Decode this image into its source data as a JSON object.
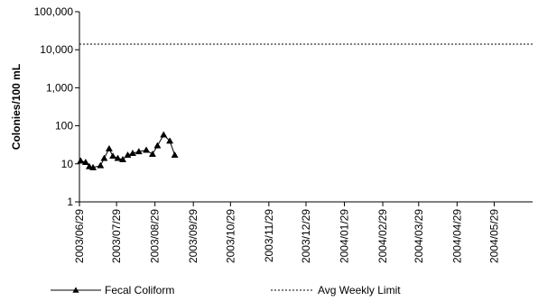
{
  "chart_data": {
    "type": "line",
    "title": "",
    "xlabel": "",
    "ylabel": "Colonies/100 mL",
    "yscale": "log",
    "ylim": [
      1,
      100000
    ],
    "xlim": [
      "2003-06-29",
      "2004-06-29"
    ],
    "grid": false,
    "legend_position": "bottom",
    "y_ticks": [
      1,
      10,
      100,
      1000,
      10000,
      100000
    ],
    "y_tick_labels": [
      "1",
      "10",
      "100",
      "1,000",
      "10,000",
      "100,000"
    ],
    "x_ticks": [
      "2003-06-29",
      "2003-07-29",
      "2003-08-29",
      "2003-09-29",
      "2003-10-29",
      "2003-11-29",
      "2003-12-29",
      "2004-01-29",
      "2004-02-29",
      "2004-03-29",
      "2004-04-29",
      "2004-05-29"
    ],
    "x_tick_labels": [
      "2003/06/29",
      "2003/07/29",
      "2003/08/29",
      "2003/09/29",
      "2003/10/29",
      "2003/11/29",
      "2003/12/29",
      "2004/01/29",
      "2004/02/29",
      "2004/03/29",
      "2004/04/29",
      "2004/05/29"
    ],
    "series": [
      {
        "name": "Fecal Coliform",
        "style": "line-triangle",
        "color": "#000000",
        "x": [
          "2003-06-30",
          "2003-07-04",
          "2003-07-07",
          "2003-07-10",
          "2003-07-16",
          "2003-07-19",
          "2003-07-23",
          "2003-07-26",
          "2003-07-30",
          "2003-08-03",
          "2003-08-07",
          "2003-08-11",
          "2003-08-16",
          "2003-08-22",
          "2003-08-27",
          "2003-08-31",
          "2003-09-05",
          "2003-09-10",
          "2003-09-14"
        ],
        "y": [
          12,
          11,
          8.5,
          8,
          9,
          14,
          25,
          16,
          14,
          13,
          17,
          19,
          21,
          23,
          18,
          30,
          58,
          40,
          17
        ]
      },
      {
        "name": "Avg Weekly Limit",
        "style": "dotted",
        "color": "#000000",
        "x": [
          "2003-06-29",
          "2004-06-29"
        ],
        "y": [
          14000,
          14000
        ]
      }
    ]
  }
}
